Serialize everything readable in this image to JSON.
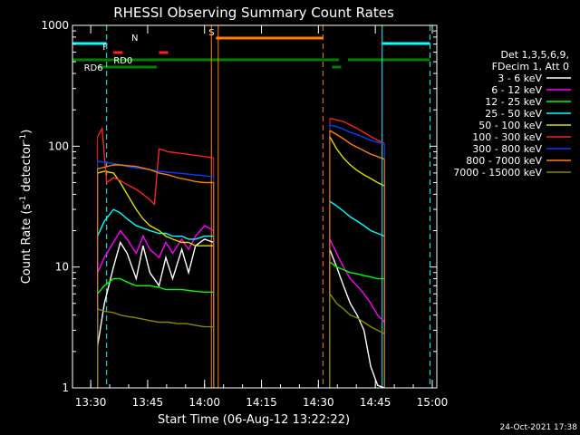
{
  "chart_data": {
    "type": "line",
    "title": "RHESSI Observing Summary Count Rates",
    "xlabel": "Start Time (06-Aug-12 13:22:22)",
    "ylabel_main": "Count Rate (s",
    "ylabel_exp1": "-1",
    "ylabel_mid": " detector",
    "ylabel_exp2": "-1",
    "ylabel_end": ")",
    "yscale": "log",
    "ylim": [
      1,
      1000
    ],
    "xlim_minutes": [
      13.42,
      15.02
    ],
    "x_ticks": [
      {
        "label": "13:30",
        "t": 13.5
      },
      {
        "label": "13:45",
        "t": 13.75
      },
      {
        "label": "14:00",
        "t": 14.0
      },
      {
        "label": "14:15",
        "t": 14.25
      },
      {
        "label": "14:30",
        "t": 14.5
      },
      {
        "label": "14:45",
        "t": 14.75
      },
      {
        "label": "15:00",
        "t": 15.0
      }
    ],
    "y_ticks": [
      {
        "label": "1",
        "v": 1
      },
      {
        "label": "10",
        "v": 10
      },
      {
        "label": "100",
        "v": 100
      },
      {
        "label": "1000",
        "v": 1000
      }
    ],
    "legend_header": [
      "Det 1,3,5,6,9,",
      "FDecim 1, Att 0"
    ],
    "legend_placement": "right",
    "series": [
      {
        "name": "3 - 6 keV",
        "color": "#ffffff",
        "segments": [
          [
            [
              13.53,
              2.2
            ],
            [
              13.56,
              5
            ],
            [
              13.6,
              10
            ],
            [
              13.63,
              16
            ],
            [
              13.66,
              13
            ],
            [
              13.7,
              8
            ],
            [
              13.73,
              15
            ],
            [
              13.76,
              9
            ],
            [
              13.8,
              7
            ],
            [
              13.83,
              12
            ],
            [
              13.86,
              8
            ],
            [
              13.9,
              14
            ],
            [
              13.93,
              9
            ],
            [
              13.96,
              15
            ],
            [
              14.0,
              17
            ],
            [
              14.04,
              16
            ]
          ],
          [
            [
              14.55,
              14
            ],
            [
              14.58,
              10
            ],
            [
              14.61,
              7
            ],
            [
              14.64,
              5
            ],
            [
              14.67,
              4
            ],
            [
              14.7,
              3
            ],
            [
              14.73,
              1.5
            ],
            [
              14.76,
              1.05
            ],
            [
              14.79,
              1.0
            ]
          ]
        ]
      },
      {
        "name": "6 - 12 keV",
        "color": "#ff00ff",
        "segments": [
          [
            [
              13.53,
              9
            ],
            [
              13.56,
              12
            ],
            [
              13.6,
              16
            ],
            [
              13.63,
              20
            ],
            [
              13.66,
              17
            ],
            [
              13.7,
              13
            ],
            [
              13.73,
              18
            ],
            [
              13.76,
              14
            ],
            [
              13.8,
              12
            ],
            [
              13.83,
              16
            ],
            [
              13.86,
              13
            ],
            [
              13.9,
              17
            ],
            [
              13.93,
              14
            ],
            [
              13.96,
              18
            ],
            [
              14.0,
              22
            ],
            [
              14.04,
              20
            ]
          ],
          [
            [
              14.55,
              17
            ],
            [
              14.58,
              13
            ],
            [
              14.61,
              10
            ],
            [
              14.64,
              8
            ],
            [
              14.67,
              7
            ],
            [
              14.7,
              6
            ],
            [
              14.73,
              5
            ],
            [
              14.76,
              4
            ],
            [
              14.79,
              3.5
            ]
          ]
        ]
      },
      {
        "name": "12 - 25 keV",
        "color": "#00ff00",
        "segments": [
          [
            [
              13.53,
              6
            ],
            [
              13.56,
              7
            ],
            [
              13.6,
              8
            ],
            [
              13.63,
              8
            ],
            [
              13.66,
              7.5
            ],
            [
              13.7,
              7
            ],
            [
              13.73,
              7
            ],
            [
              13.76,
              7
            ],
            [
              13.8,
              6.8
            ],
            [
              13.83,
              6.5
            ],
            [
              13.86,
              6.5
            ],
            [
              13.9,
              6.5
            ],
            [
              13.93,
              6.4
            ],
            [
              13.96,
              6.3
            ],
            [
              14.0,
              6.2
            ],
            [
              14.04,
              6.2
            ]
          ],
          [
            [
              14.55,
              11
            ],
            [
              14.58,
              10
            ],
            [
              14.61,
              9.5
            ],
            [
              14.64,
              9
            ],
            [
              14.67,
              8.8
            ],
            [
              14.7,
              8.5
            ],
            [
              14.73,
              8.3
            ],
            [
              14.76,
              8
            ],
            [
              14.79,
              8
            ]
          ]
        ]
      },
      {
        "name": "25 - 50 keV",
        "color": "#00ffff",
        "segments": [
          [
            [
              13.53,
              18
            ],
            [
              13.56,
              24
            ],
            [
              13.6,
              30
            ],
            [
              13.63,
              28
            ],
            [
              13.66,
              25
            ],
            [
              13.7,
              22
            ],
            [
              13.73,
              21
            ],
            [
              13.76,
              20
            ],
            [
              13.8,
              19
            ],
            [
              13.83,
              19
            ],
            [
              13.86,
              18
            ],
            [
              13.9,
              18
            ],
            [
              13.93,
              17
            ],
            [
              13.96,
              17
            ],
            [
              14.0,
              18
            ],
            [
              14.04,
              18
            ]
          ],
          [
            [
              14.55,
              35
            ],
            [
              14.58,
              32
            ],
            [
              14.61,
              29
            ],
            [
              14.64,
              26
            ],
            [
              14.67,
              24
            ],
            [
              14.7,
              22
            ],
            [
              14.73,
              20
            ],
            [
              14.76,
              19
            ],
            [
              14.79,
              18
            ]
          ]
        ]
      },
      {
        "name": "50 - 100 keV",
        "color": "#dddd00",
        "segments": [
          [
            [
              13.53,
              60
            ],
            [
              13.56,
              62
            ],
            [
              13.6,
              60
            ],
            [
              13.63,
              50
            ],
            [
              13.66,
              40
            ],
            [
              13.7,
              30
            ],
            [
              13.73,
              25
            ],
            [
              13.76,
              22
            ],
            [
              13.8,
              20
            ],
            [
              13.83,
              18
            ],
            [
              13.86,
              17
            ],
            [
              13.9,
              16
            ],
            [
              13.93,
              16
            ],
            [
              13.96,
              15
            ],
            [
              14.0,
              15
            ],
            [
              14.04,
              15
            ]
          ],
          [
            [
              14.55,
              120
            ],
            [
              14.58,
              95
            ],
            [
              14.61,
              80
            ],
            [
              14.64,
              70
            ],
            [
              14.67,
              63
            ],
            [
              14.7,
              58
            ],
            [
              14.73,
              54
            ],
            [
              14.76,
              50
            ],
            [
              14.79,
              47
            ]
          ]
        ]
      },
      {
        "name": "100 - 300 keV",
        "color": "#ff2020",
        "segments": [
          [
            [
              13.53,
              120
            ],
            [
              13.55,
              140
            ],
            [
              13.57,
              50
            ],
            [
              13.6,
              55
            ],
            [
              13.63,
              52
            ],
            [
              13.66,
              48
            ],
            [
              13.7,
              44
            ],
            [
              13.73,
              40
            ],
            [
              13.76,
              36
            ],
            [
              13.78,
              33
            ],
            [
              13.8,
              95
            ],
            [
              13.84,
              90
            ],
            [
              13.88,
              88
            ],
            [
              13.92,
              86
            ],
            [
              13.96,
              84
            ],
            [
              14.0,
              82
            ],
            [
              14.04,
              80
            ]
          ],
          [
            [
              14.55,
              170
            ],
            [
              14.58,
              165
            ],
            [
              14.61,
              160
            ],
            [
              14.64,
              150
            ],
            [
              14.67,
              140
            ],
            [
              14.7,
              130
            ],
            [
              14.73,
              120
            ],
            [
              14.76,
              112
            ],
            [
              14.79,
              105
            ]
          ]
        ]
      },
      {
        "name": "300 - 800 keV",
        "color": "#0040ff",
        "segments": [
          [
            [
              13.53,
              75
            ],
            [
              13.56,
              74
            ],
            [
              13.6,
              72
            ],
            [
              13.63,
              70
            ],
            [
              13.66,
              68
            ],
            [
              13.7,
              66
            ],
            [
              13.73,
              65
            ],
            [
              13.76,
              64
            ],
            [
              13.8,
              62
            ],
            [
              13.84,
              61
            ],
            [
              13.88,
              60
            ],
            [
              13.92,
              59
            ],
            [
              13.96,
              58
            ],
            [
              14.0,
              57
            ],
            [
              14.04,
              56
            ]
          ],
          [
            [
              14.55,
              150
            ],
            [
              14.58,
              145
            ],
            [
              14.61,
              138
            ],
            [
              14.64,
              130
            ],
            [
              14.67,
              125
            ],
            [
              14.7,
              118
            ],
            [
              14.73,
              112
            ],
            [
              14.76,
              108
            ],
            [
              14.79,
              104
            ]
          ]
        ]
      },
      {
        "name": "800 - 7000 keV",
        "color": "#ff8000",
        "segments": [
          [
            [
              13.53,
              65
            ],
            [
              13.56,
              67
            ],
            [
              13.6,
              70
            ],
            [
              13.63,
              70
            ],
            [
              13.66,
              69
            ],
            [
              13.7,
              68
            ],
            [
              13.73,
              66
            ],
            [
              13.76,
              64
            ],
            [
              13.8,
              60
            ],
            [
              13.84,
              58
            ],
            [
              13.88,
              55
            ],
            [
              13.92,
              53
            ],
            [
              13.96,
              51
            ],
            [
              14.0,
              50
            ],
            [
              14.04,
              50
            ]
          ],
          [
            [
              14.55,
              135
            ],
            [
              14.58,
              125
            ],
            [
              14.61,
              115
            ],
            [
              14.64,
              105
            ],
            [
              14.67,
              98
            ],
            [
              14.7,
              92
            ],
            [
              14.73,
              86
            ],
            [
              14.76,
              82
            ],
            [
              14.79,
              78
            ]
          ]
        ]
      },
      {
        "name": "7000 - 15000 keV",
        "color": "#888800",
        "segments": [
          [
            [
              13.53,
              4.5
            ],
            [
              13.56,
              4.3
            ],
            [
              13.6,
              4.2
            ],
            [
              13.63,
              4.0
            ],
            [
              13.66,
              3.9
            ],
            [
              13.7,
              3.8
            ],
            [
              13.73,
              3.7
            ],
            [
              13.76,
              3.6
            ],
            [
              13.8,
              3.5
            ],
            [
              13.84,
              3.5
            ],
            [
              13.88,
              3.4
            ],
            [
              13.92,
              3.4
            ],
            [
              13.96,
              3.3
            ],
            [
              14.0,
              3.2
            ],
            [
              14.04,
              3.2
            ]
          ],
          [
            [
              14.55,
              6
            ],
            [
              14.58,
              5
            ],
            [
              14.61,
              4.5
            ],
            [
              14.64,
              4
            ],
            [
              14.67,
              3.8
            ],
            [
              14.7,
              3.5
            ],
            [
              14.73,
              3.2
            ],
            [
              14.76,
              3
            ],
            [
              14.79,
              2.8
            ]
          ]
        ]
      }
    ],
    "flag_bars": [
      {
        "label": "N",
        "color": "#00ffff",
        "level": 1,
        "start": 13.42,
        "end": 13.57
      },
      {
        "label": "",
        "color": "#00ffff",
        "level": 1,
        "start": 14.78,
        "end": 14.99
      },
      {
        "label": "F",
        "color": "#ff2020",
        "level": 2,
        "start": 13.6,
        "end": 13.64
      },
      {
        "label": "",
        "color": "#ff2020",
        "level": 2,
        "start": 13.8,
        "end": 13.84
      },
      {
        "label": "S",
        "color": "#ff8000",
        "level": 0,
        "start": 14.05,
        "end": 14.52
      },
      {
        "label": "RD0",
        "color": "#008000",
        "level": 3,
        "start": 13.42,
        "end": 14.59
      },
      {
        "label": "",
        "color": "#008000",
        "level": 3,
        "start": 14.63,
        "end": 14.99
      },
      {
        "label": "RD6",
        "color": "#008000",
        "level": 4,
        "start": 13.53,
        "end": 13.79
      },
      {
        "label": "",
        "color": "#008000",
        "level": 4,
        "start": 14.56,
        "end": 14.6
      }
    ],
    "vertical_markers": [
      {
        "t": 13.57,
        "color": "#00ffff",
        "style": "dashed"
      },
      {
        "t": 14.03,
        "color": "#ff8000",
        "style": "solid"
      },
      {
        "t": 14.06,
        "color": "#ff8000",
        "style": "solid"
      },
      {
        "t": 14.52,
        "color": "#ff8000",
        "style": "dashed"
      },
      {
        "t": 14.78,
        "color": "#00ffff",
        "style": "solid"
      },
      {
        "t": 14.99,
        "color": "#00ffff",
        "style": "dashed"
      }
    ],
    "footer_date": "24-Oct-2021 17:38"
  }
}
